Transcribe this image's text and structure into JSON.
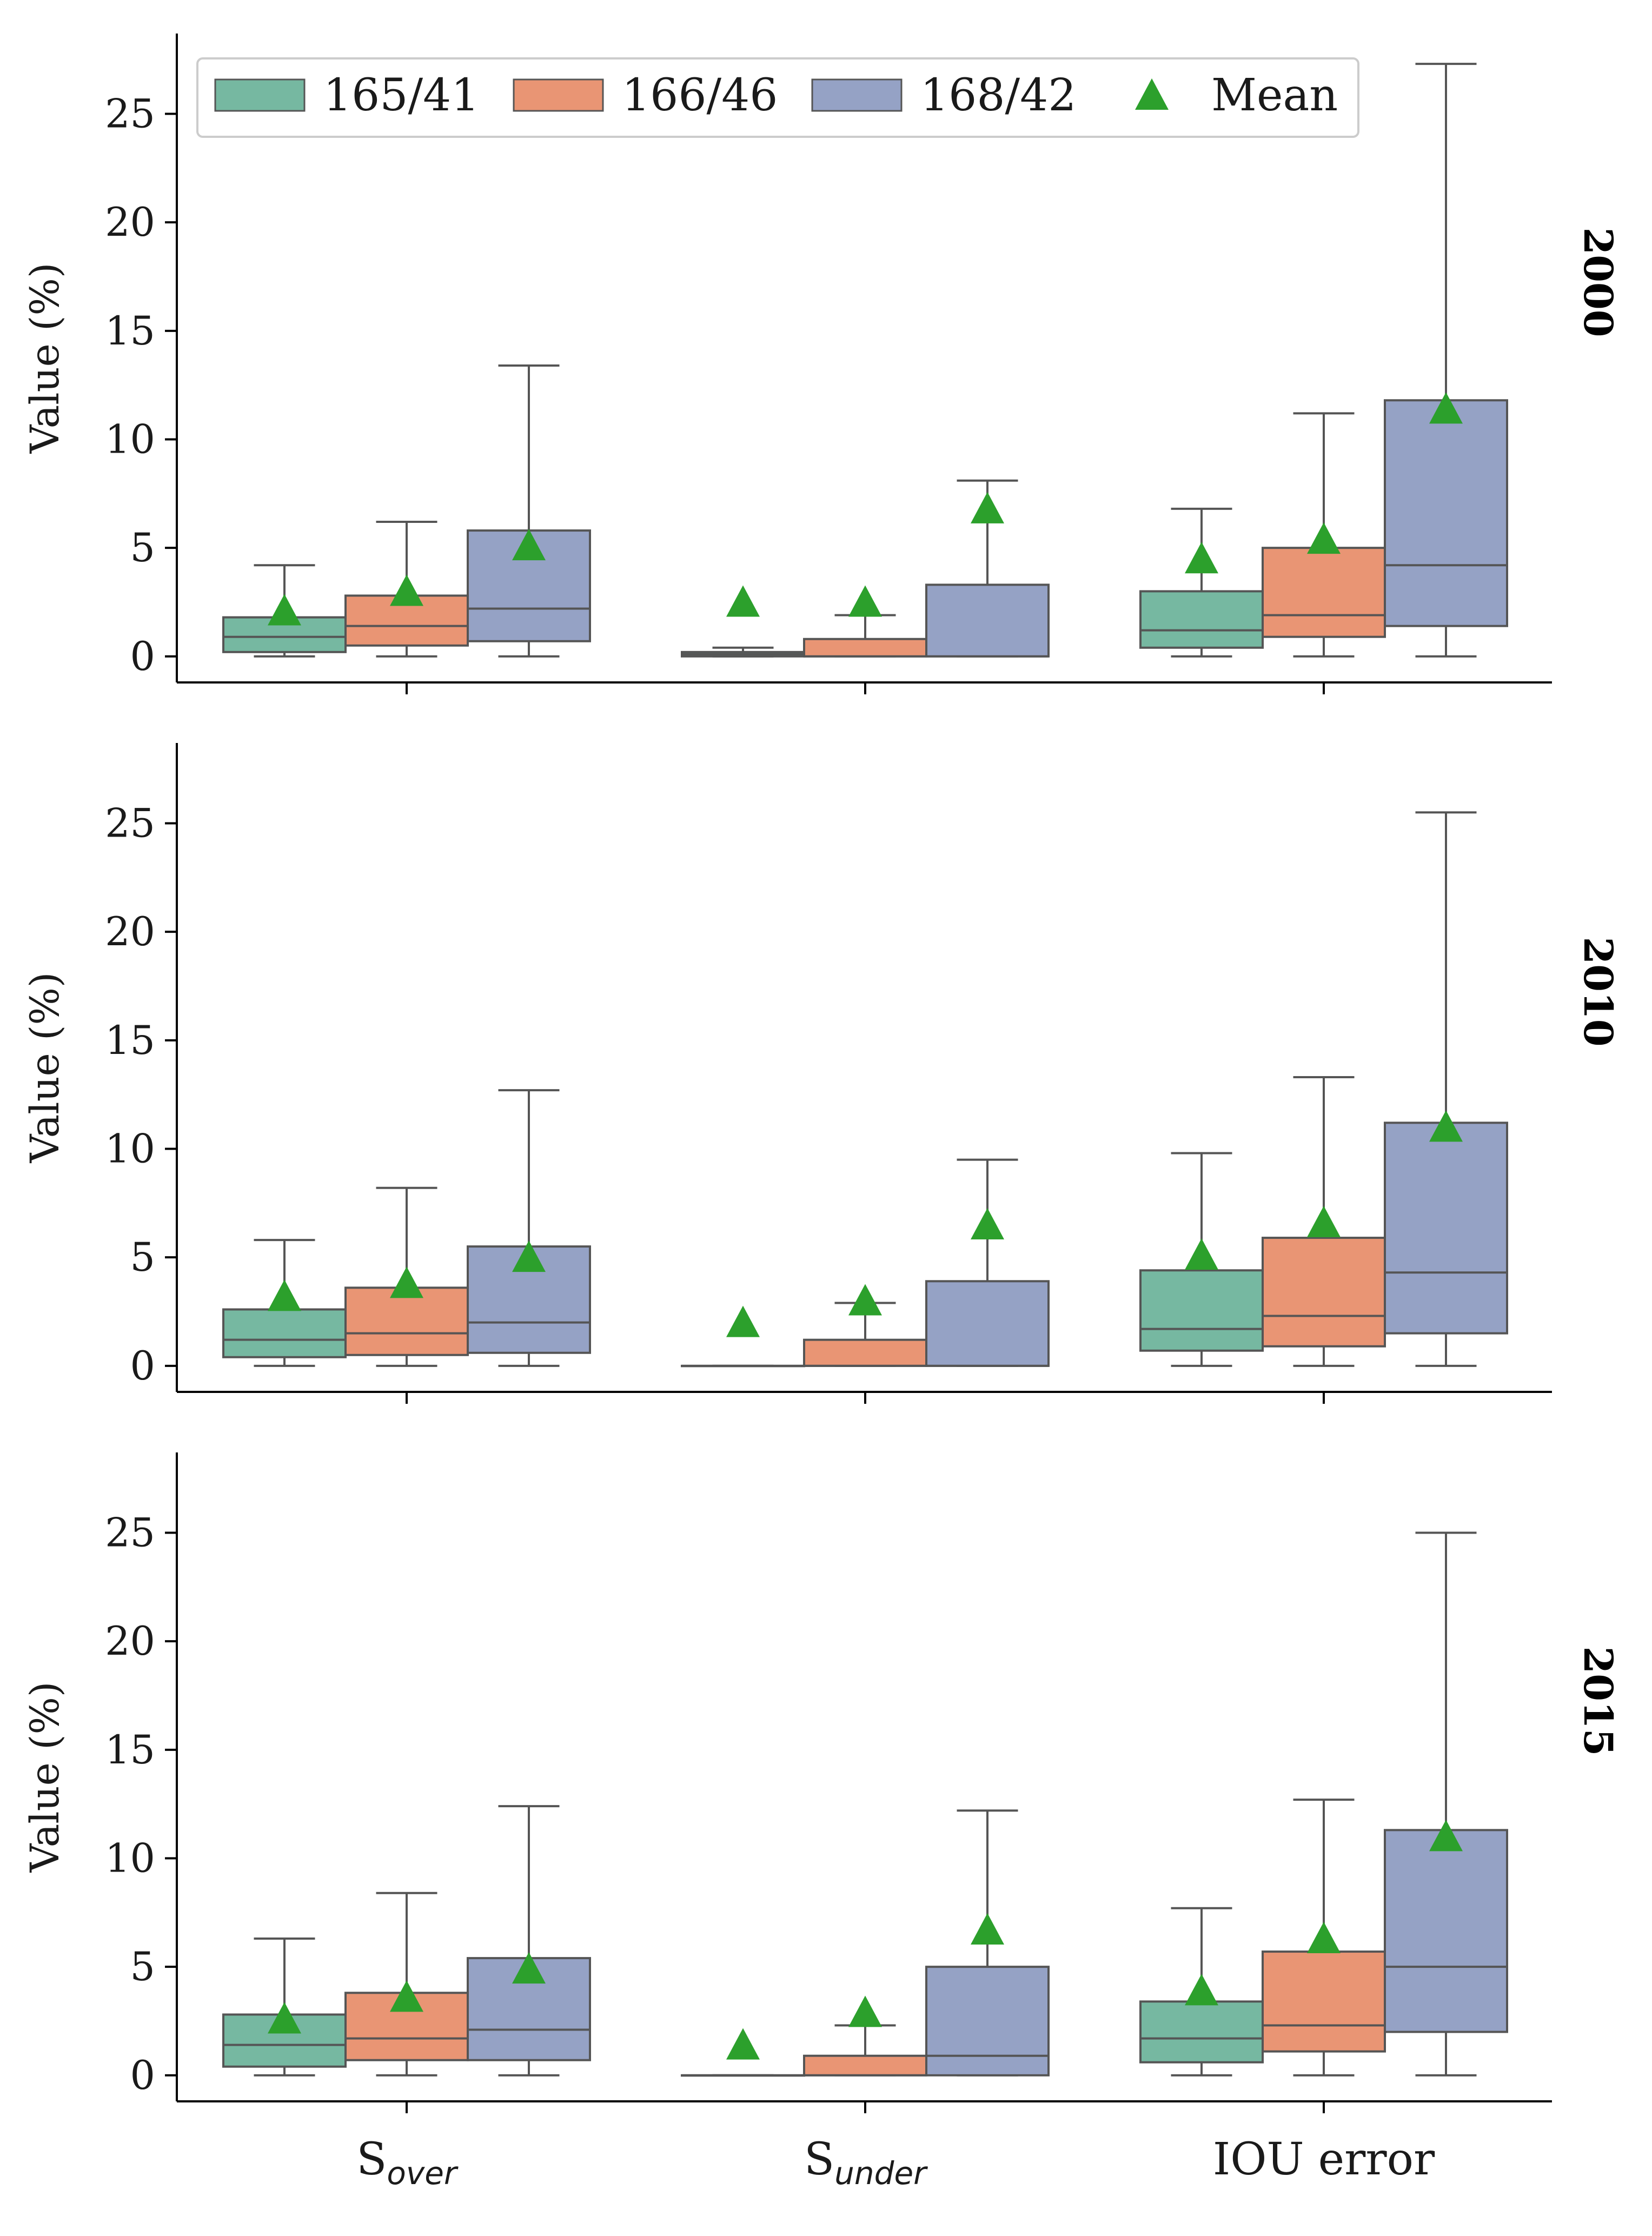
{
  "chart_data": {
    "type": "boxplot",
    "ylabel": "Value (%)",
    "ylim": [
      -1.2,
      28.7
    ],
    "yticks": [
      0,
      5,
      10,
      15,
      20,
      25
    ],
    "categories": [
      {
        "key": "S_over",
        "base": "S",
        "sub": "over"
      },
      {
        "key": "S_under",
        "base": "S",
        "sub": "under"
      },
      {
        "key": "IOU",
        "base": "IOU error",
        "sub": ""
      }
    ],
    "colors": {
      "165/41": "#76b8a1",
      "166/46": "#e99574",
      "168/42": "#95a2c5",
      "mean": "#2ca02c",
      "box_edge": "#555555",
      "axis": "#000000"
    },
    "legend": {
      "position": "upper-left",
      "entries": [
        {
          "label": "165/41",
          "kind": "box",
          "series": "165/41"
        },
        {
          "label": "166/46",
          "kind": "box",
          "series": "166/46"
        },
        {
          "label": "168/42",
          "kind": "box",
          "series": "168/42"
        },
        {
          "label": "Mean",
          "kind": "marker",
          "series": "mean"
        }
      ]
    },
    "series": [
      "165/41",
      "166/46",
      "168/42"
    ],
    "panels": [
      {
        "title": "2000",
        "boxes": [
          {
            "series": "165/41",
            "category": "S_over",
            "whislo": 0,
            "q1": 0.2,
            "med": 0.9,
            "q3": 1.8,
            "whishi": 4.2,
            "mean": 2.1
          },
          {
            "series": "166/46",
            "category": "S_over",
            "whislo": 0,
            "q1": 0.5,
            "med": 1.4,
            "q3": 2.8,
            "whishi": 6.2,
            "mean": 3.0
          },
          {
            "series": "168/42",
            "category": "S_over",
            "whislo": 0,
            "q1": 0.7,
            "med": 2.2,
            "q3": 5.8,
            "whishi": 13.4,
            "mean": 5.1
          },
          {
            "series": "165/41",
            "category": "S_under",
            "whislo": 0,
            "q1": 0.0,
            "med": 0.1,
            "q3": 0.2,
            "whishi": 0.4,
            "mean": 2.5
          },
          {
            "series": "166/46",
            "category": "S_under",
            "whislo": 0,
            "q1": 0.0,
            "med": 0.0,
            "q3": 0.8,
            "whishi": 1.9,
            "mean": 2.5
          },
          {
            "series": "168/42",
            "category": "S_under",
            "whislo": 0,
            "q1": 0.0,
            "med": 0.0,
            "q3": 3.3,
            "whishi": 8.1,
            "mean": 6.8
          },
          {
            "series": "165/41",
            "category": "IOU",
            "whislo": 0,
            "q1": 0.4,
            "med": 1.2,
            "q3": 3.0,
            "whishi": 6.8,
            "mean": 4.5
          },
          {
            "series": "166/46",
            "category": "IOU",
            "whislo": 0,
            "q1": 0.9,
            "med": 1.9,
            "q3": 5.0,
            "whishi": 11.2,
            "mean": 5.4
          },
          {
            "series": "168/42",
            "category": "IOU",
            "whislo": 0,
            "q1": 1.4,
            "med": 4.2,
            "q3": 11.8,
            "whishi": 27.3,
            "mean": 11.4
          }
        ]
      },
      {
        "title": "2010",
        "boxes": [
          {
            "series": "165/41",
            "category": "S_over",
            "whislo": 0,
            "q1": 0.4,
            "med": 1.2,
            "q3": 2.6,
            "whishi": 5.8,
            "mean": 3.2
          },
          {
            "series": "166/46",
            "category": "S_over",
            "whislo": 0,
            "q1": 0.5,
            "med": 1.5,
            "q3": 3.6,
            "whishi": 8.2,
            "mean": 3.8
          },
          {
            "series": "168/42",
            "category": "S_over",
            "whislo": 0,
            "q1": 0.6,
            "med": 2.0,
            "q3": 5.5,
            "whishi": 12.7,
            "mean": 5.0
          },
          {
            "series": "165/41",
            "category": "S_under",
            "whislo": 0,
            "q1": 0.0,
            "med": 0.0,
            "q3": 0.0,
            "whishi": 0.0,
            "mean": 2.0
          },
          {
            "series": "166/46",
            "category": "S_under",
            "whislo": 0,
            "q1": 0.0,
            "med": 0.0,
            "q3": 1.2,
            "whishi": 2.9,
            "mean": 3.0
          },
          {
            "series": "168/42",
            "category": "S_under",
            "whislo": 0,
            "q1": 0.0,
            "med": 0.0,
            "q3": 3.9,
            "whishi": 9.5,
            "mean": 6.5
          },
          {
            "series": "165/41",
            "category": "IOU",
            "whislo": 0,
            "q1": 0.7,
            "med": 1.7,
            "q3": 4.4,
            "whishi": 9.8,
            "mean": 5.1
          },
          {
            "series": "166/46",
            "category": "IOU",
            "whislo": 0,
            "q1": 0.9,
            "med": 2.3,
            "q3": 5.9,
            "whishi": 13.3,
            "mean": 6.6
          },
          {
            "series": "168/42",
            "category": "IOU",
            "whislo": 0,
            "q1": 1.5,
            "med": 4.3,
            "q3": 11.2,
            "whishi": 25.5,
            "mean": 11.0
          }
        ]
      },
      {
        "title": "2015",
        "boxes": [
          {
            "series": "165/41",
            "category": "S_over",
            "whislo": 0,
            "q1": 0.4,
            "med": 1.4,
            "q3": 2.8,
            "whishi": 6.3,
            "mean": 2.6
          },
          {
            "series": "166/46",
            "category": "S_over",
            "whislo": 0,
            "q1": 0.7,
            "med": 1.7,
            "q3": 3.8,
            "whishi": 8.4,
            "mean": 3.6
          },
          {
            "series": "168/42",
            "category": "S_over",
            "whislo": 0,
            "q1": 0.7,
            "med": 2.1,
            "q3": 5.4,
            "whishi": 12.4,
            "mean": 4.9
          },
          {
            "series": "165/41",
            "category": "S_under",
            "whislo": 0,
            "q1": 0.0,
            "med": 0.0,
            "q3": 0.0,
            "whishi": 0.0,
            "mean": 1.4
          },
          {
            "series": "166/46",
            "category": "S_under",
            "whislo": 0,
            "q1": 0.0,
            "med": 0.0,
            "q3": 0.9,
            "whishi": 2.3,
            "mean": 2.9
          },
          {
            "series": "168/42",
            "category": "S_under",
            "whislo": 0,
            "q1": 0.0,
            "med": 0.9,
            "q3": 5.0,
            "whishi": 12.2,
            "mean": 6.7
          },
          {
            "series": "165/41",
            "category": "IOU",
            "whislo": 0,
            "q1": 0.6,
            "med": 1.7,
            "q3": 3.4,
            "whishi": 7.7,
            "mean": 3.9
          },
          {
            "series": "166/46",
            "category": "IOU",
            "whislo": 0,
            "q1": 1.1,
            "med": 2.3,
            "q3": 5.7,
            "whishi": 12.7,
            "mean": 6.3
          },
          {
            "series": "168/42",
            "category": "IOU",
            "whislo": 0,
            "q1": 2.0,
            "med": 5.0,
            "q3": 11.3,
            "whishi": 25.0,
            "mean": 11.0
          }
        ]
      }
    ]
  }
}
